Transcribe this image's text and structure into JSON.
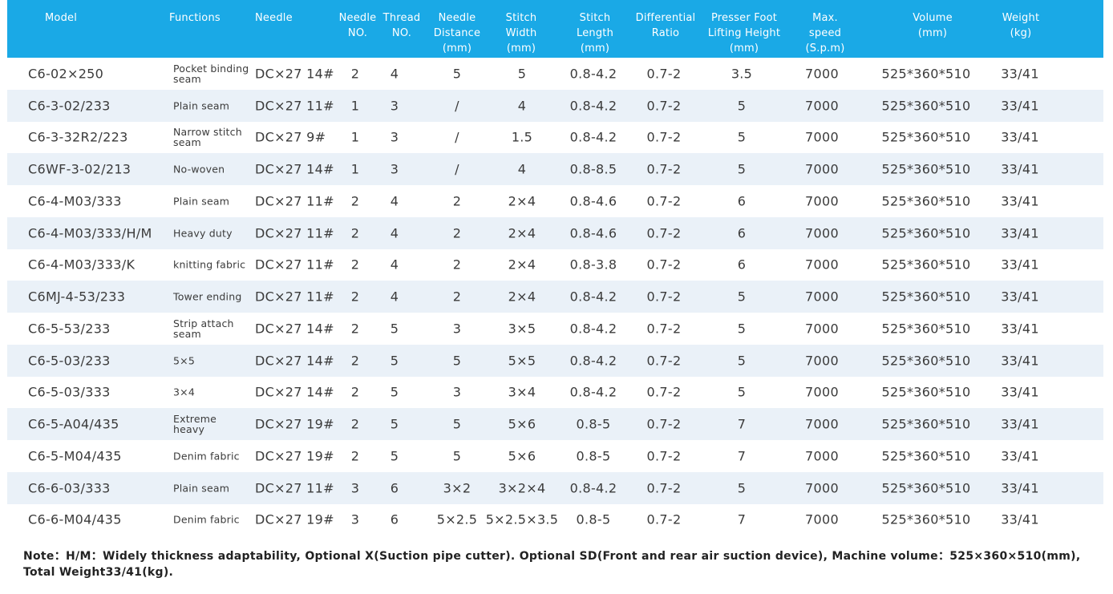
{
  "table": {
    "headers": {
      "model": "Model",
      "functions": "Functions",
      "needle": "Needle",
      "needle_no": "Needle\nNO.",
      "thread_no": "Thread\nNO.",
      "needle_distance": "Needle\nDistance\n(mm)",
      "stitch_width": "Stitch\nWidth\n(mm)",
      "stitch_length": "Stitch\nLength\n(mm)",
      "differential_ratio": "Differential\nRatio",
      "presser_foot": "Presser Foot\nLifting Height\n(mm)",
      "max_speed": "Max.\nspeed\n(S.p.m)",
      "volume": "Volume\n(mm)",
      "weight": "Weight\n(kg)"
    },
    "rows": [
      {
        "model": "C6-02×250",
        "functions": "Pocket binding seam",
        "needle": "DC×27 14#",
        "needle_no": "2",
        "thread_no": "4",
        "needle_distance": "5",
        "stitch_width": "5",
        "stitch_length": "0.8-4.2",
        "differential_ratio": "0.7-2",
        "presser_foot": "3.5",
        "max_speed": "7000",
        "volume": "525*360*510",
        "weight": "33/41"
      },
      {
        "model": "C6-3-02/233",
        "functions": "Plain seam",
        "needle": "DC×27 11#",
        "needle_no": "1",
        "thread_no": "3",
        "needle_distance": "/",
        "stitch_width": "4",
        "stitch_length": "0.8-4.2",
        "differential_ratio": "0.7-2",
        "presser_foot": "5",
        "max_speed": "7000",
        "volume": "525*360*510",
        "weight": "33/41"
      },
      {
        "model": "C6-3-32R2/223",
        "functions": "Narrow stitch seam",
        "needle": "DC×27 9#",
        "needle_no": "1",
        "thread_no": "3",
        "needle_distance": "/",
        "stitch_width": "1.5",
        "stitch_length": "0.8-4.2",
        "differential_ratio": "0.7-2",
        "presser_foot": "5",
        "max_speed": "7000",
        "volume": "525*360*510",
        "weight": "33/41"
      },
      {
        "model": "C6WF-3-02/213",
        "functions": "No-woven",
        "needle": "DC×27 14#",
        "needle_no": "1",
        "thread_no": "3",
        "needle_distance": "/",
        "stitch_width": "4",
        "stitch_length": "0.8-8.5",
        "differential_ratio": "0.7-2",
        "presser_foot": "5",
        "max_speed": "7000",
        "volume": "525*360*510",
        "weight": "33/41"
      },
      {
        "model": "C6-4-M03/333",
        "functions": "Plain seam",
        "needle": "DC×27 11#",
        "needle_no": "2",
        "thread_no": "4",
        "needle_distance": "2",
        "stitch_width": "2×4",
        "stitch_length": "0.8-4.6",
        "differential_ratio": "0.7-2",
        "presser_foot": "6",
        "max_speed": "7000",
        "volume": "525*360*510",
        "weight": "33/41"
      },
      {
        "model": "C6-4-M03/333/H/M",
        "functions": "Heavy duty",
        "needle": "DC×27 11#",
        "needle_no": "2",
        "thread_no": "4",
        "needle_distance": "2",
        "stitch_width": "2×4",
        "stitch_length": "0.8-4.6",
        "differential_ratio": "0.7-2",
        "presser_foot": "6",
        "max_speed": "7000",
        "volume": "525*360*510",
        "weight": "33/41"
      },
      {
        "model": "C6-4-M03/333/K",
        "functions": "knitting fabric",
        "needle": "DC×27 11#",
        "needle_no": "2",
        "thread_no": "4",
        "needle_distance": "2",
        "stitch_width": "2×4",
        "stitch_length": "0.8-3.8",
        "differential_ratio": "0.7-2",
        "presser_foot": "6",
        "max_speed": "7000",
        "volume": "525*360*510",
        "weight": "33/41"
      },
      {
        "model": "C6MJ-4-53/233",
        "functions": "Tower ending",
        "needle": "DC×27 11#",
        "needle_no": "2",
        "thread_no": "4",
        "needle_distance": "2",
        "stitch_width": "2×4",
        "stitch_length": "0.8-4.2",
        "differential_ratio": "0.7-2",
        "presser_foot": "5",
        "max_speed": "7000",
        "volume": "525*360*510",
        "weight": "33/41"
      },
      {
        "model": "C6-5-53/233",
        "functions": "Strip attach seam",
        "needle": "DC×27 14#",
        "needle_no": "2",
        "thread_no": "5",
        "needle_distance": "3",
        "stitch_width": "3×5",
        "stitch_length": "0.8-4.2",
        "differential_ratio": "0.7-2",
        "presser_foot": "5",
        "max_speed": "7000",
        "volume": "525*360*510",
        "weight": "33/41"
      },
      {
        "model": "C6-5-03/233",
        "functions": "5×5",
        "needle": "DC×27 14#",
        "needle_no": "2",
        "thread_no": "5",
        "needle_distance": "5",
        "stitch_width": "5×5",
        "stitch_length": "0.8-4.2",
        "differential_ratio": "0.7-2",
        "presser_foot": "5",
        "max_speed": "7000",
        "volume": "525*360*510",
        "weight": "33/41"
      },
      {
        "model": "C6-5-03/333",
        "functions": "3×4",
        "needle": "DC×27 14#",
        "needle_no": "2",
        "thread_no": "5",
        "needle_distance": "3",
        "stitch_width": "3×4",
        "stitch_length": "0.8-4.2",
        "differential_ratio": "0.7-2",
        "presser_foot": "5",
        "max_speed": "7000",
        "volume": "525*360*510",
        "weight": "33/41"
      },
      {
        "model": "C6-5-A04/435",
        "functions": "Extreme heavy",
        "needle": "DC×27 19#",
        "needle_no": "2",
        "thread_no": "5",
        "needle_distance": "5",
        "stitch_width": "5×6",
        "stitch_length": "0.8-5",
        "differential_ratio": "0.7-2",
        "presser_foot": "7",
        "max_speed": "7000",
        "volume": "525*360*510",
        "weight": "33/41"
      },
      {
        "model": "C6-5-M04/435",
        "functions": "Denim fabric",
        "needle": "DC×27 19#",
        "needle_no": "2",
        "thread_no": "5",
        "needle_distance": "5",
        "stitch_width": "5×6",
        "stitch_length": "0.8-5",
        "differential_ratio": "0.7-2",
        "presser_foot": "7",
        "max_speed": "7000",
        "volume": "525*360*510",
        "weight": "33/41"
      },
      {
        "model": "C6-6-03/333",
        "functions": "Plain seam",
        "needle": "DC×27 11#",
        "needle_no": "3",
        "thread_no": "6",
        "needle_distance": "3×2",
        "stitch_width": "3×2×4",
        "stitch_length": "0.8-4.2",
        "differential_ratio": "0.7-2",
        "presser_foot": "5",
        "max_speed": "7000",
        "volume": "525*360*510",
        "weight": "33/41"
      },
      {
        "model": "C6-6-M04/435",
        "functions": "Denim fabric",
        "needle": "DC×27 19#",
        "needle_no": "3",
        "thread_no": "6",
        "needle_distance": "5×2.5",
        "stitch_width": "5×2.5×3.5",
        "stitch_length": "0.8-5",
        "differential_ratio": "0.7-2",
        "presser_foot": "7",
        "max_speed": "7000",
        "volume": "525*360*510",
        "weight": "33/41"
      }
    ]
  },
  "note": "Note：H/M：Widely thickness adaptability, Optional X(Suction pipe cutter). Optional SD(Front and rear air suction device), Machine volume：525×360×510(mm), Total Weight33/41(kg).",
  "colors": {
    "header_bg": "#1aa9e6",
    "header_text": "#ffffff",
    "row_alt_bg": "#eaf1f8",
    "row_bg": "#ffffff",
    "body_text": "#3b3b3b"
  }
}
